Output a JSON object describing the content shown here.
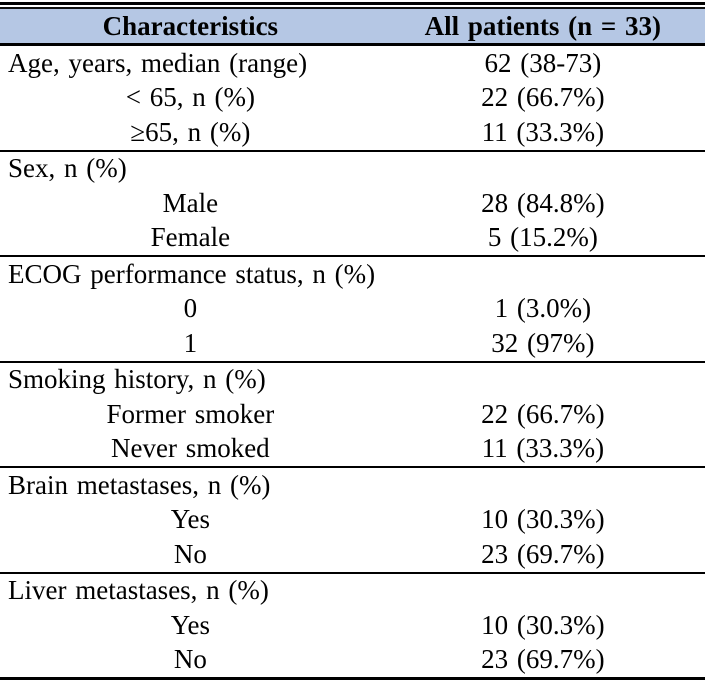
{
  "table": {
    "title_semantic": "patient-baseline-characteristics",
    "columns": [
      "Characteristics",
      "All patients (n = 33)"
    ],
    "colors": {
      "header_bg": "#b5c7e4",
      "border": "#000000",
      "text": "#000000"
    },
    "sections": [
      {
        "rows": [
          {
            "label": "Age, years, median (range)",
            "value": "62 (38-73)",
            "indent": false
          },
          {
            "label": "< 65, n (%)",
            "value": "22 (66.7%)",
            "indent": true
          },
          {
            "label": "≥65, n (%)",
            "value": "11 (33.3%)",
            "indent": true
          }
        ]
      },
      {
        "rows": [
          {
            "label": "Sex, n (%)",
            "value": "",
            "indent": false
          },
          {
            "label": "Male",
            "value": "28 (84.8%)",
            "indent": true
          },
          {
            "label": "Female",
            "value": "5 (15.2%)",
            "indent": true
          }
        ]
      },
      {
        "rows": [
          {
            "label": "ECOG performance status, n (%)",
            "value": "",
            "indent": false
          },
          {
            "label": "0",
            "value": "1 (3.0%)",
            "indent": true
          },
          {
            "label": "1",
            "value": "32 (97%)",
            "indent": true
          }
        ]
      },
      {
        "rows": [
          {
            "label": "Smoking history, n (%)",
            "value": "",
            "indent": false
          },
          {
            "label": "Former smoker",
            "value": "22 (66.7%)",
            "indent": true
          },
          {
            "label": "Never smoked",
            "value": "11 (33.3%)",
            "indent": true
          }
        ]
      },
      {
        "rows": [
          {
            "label": "Brain metastases, n (%)",
            "value": "",
            "indent": false
          },
          {
            "label": "Yes",
            "value": "10 (30.3%)",
            "indent": true
          },
          {
            "label": "No",
            "value": "23 (69.7%)",
            "indent": true
          }
        ]
      },
      {
        "rows": [
          {
            "label": "Liver metastases, n (%)",
            "value": "",
            "indent": false
          },
          {
            "label": "Yes",
            "value": "10 (30.3%)",
            "indent": true
          },
          {
            "label": "No",
            "value": "23 (69.7%)",
            "indent": true
          }
        ]
      }
    ]
  }
}
